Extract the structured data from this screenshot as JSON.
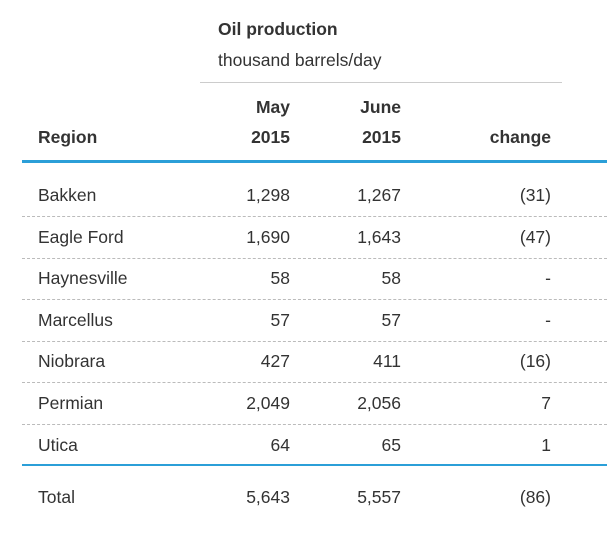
{
  "header": {
    "title": "Oil production",
    "subtitle": "thousand barrels/day"
  },
  "table": {
    "columns": [
      "Region",
      [
        "May",
        "2015"
      ],
      [
        "June",
        "2015"
      ],
      "change"
    ],
    "rows": [
      [
        "Bakken",
        "1,298",
        "1,267",
        "(31)"
      ],
      [
        "Eagle Ford",
        "1,690",
        "1,643",
        "(47)"
      ],
      [
        "Haynesville",
        "58",
        "58",
        "-"
      ],
      [
        "Marcellus",
        "57",
        "57",
        "-"
      ],
      [
        "Niobrara",
        "427",
        "411",
        "(16)"
      ],
      [
        "Permian",
        "2,049",
        "2,056",
        "7"
      ],
      [
        "Utica",
        "64",
        "65",
        "1"
      ]
    ],
    "total": [
      "Total",
      "5,643",
      "5,557",
      "(86)"
    ]
  }
}
